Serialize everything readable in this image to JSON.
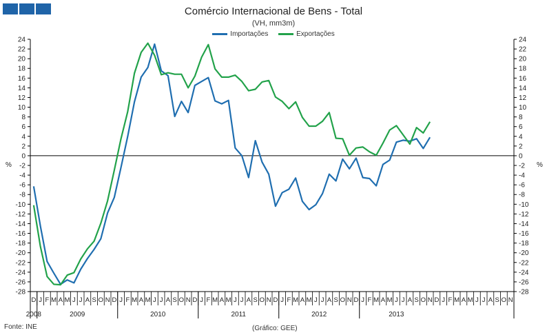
{
  "header": {
    "title": "Comércio Internacional de Bens - Total",
    "subtitle": "(VH, mm3m)"
  },
  "footer": {
    "source": "Fonte: INE",
    "credit": "(Gráfico: GEE)"
  },
  "chart_data": {
    "type": "line",
    "title": "Comércio Internacional de Bens - Total",
    "subtitle": "(VH, mm3m)",
    "ylabel_left": "%",
    "ylabel_right": "%",
    "ylim": [
      -28,
      24
    ],
    "yticks": [
      24,
      22,
      20,
      18,
      16,
      14,
      12,
      10,
      8,
      6,
      4,
      2,
      0,
      -2,
      -4,
      -6,
      -8,
      -10,
      -12,
      -14,
      -16,
      -18,
      -20,
      -22,
      -24,
      -26,
      -28
    ],
    "legend_position": "top-center",
    "grid": false,
    "x_month_labels": [
      "D",
      "J",
      "F",
      "M",
      "A",
      "M",
      "J",
      "J",
      "A",
      "S",
      "O",
      "N",
      "D",
      "J",
      "F",
      "M",
      "A",
      "M",
      "J",
      "J",
      "A",
      "S",
      "O",
      "N",
      "D",
      "J",
      "F",
      "M",
      "A",
      "M",
      "J",
      "J",
      "A",
      "S",
      "O",
      "N",
      "D",
      "J",
      "F",
      "M",
      "A",
      "M",
      "J",
      "J",
      "A",
      "S",
      "O",
      "N",
      "D",
      "J",
      "F",
      "M",
      "A",
      "M",
      "J",
      "J",
      "A",
      "S",
      "O",
      "N",
      "D",
      "J",
      "F",
      "M",
      "A",
      "M",
      "J",
      "J",
      "A",
      "S",
      "O",
      "N"
    ],
    "x_year_labels": [
      {
        "label": "2008",
        "start": 0,
        "end": 0
      },
      {
        "label": "2009",
        "start": 1,
        "end": 12
      },
      {
        "label": "2010",
        "start": 13,
        "end": 24
      },
      {
        "label": "2011",
        "start": 25,
        "end": 36
      },
      {
        "label": "2012",
        "start": 37,
        "end": 48
      },
      {
        "label": "2013",
        "start": 49,
        "end": 59
      }
    ],
    "series": [
      {
        "name": "Importações",
        "color": "#1f6eb0",
        "values": [
          -6.3,
          -14.5,
          -21.8,
          -24.2,
          -26.5,
          -25.6,
          -26.2,
          -23.4,
          -21.2,
          -19.3,
          -17.1,
          -11.8,
          -8.6,
          -2.4,
          4.0,
          11.1,
          16.2,
          18.2,
          23.0,
          17.5,
          16.5,
          8.1,
          11.2,
          8.9,
          14.5,
          15.3,
          16.1,
          11.3,
          10.7,
          11.4,
          1.6,
          0.0,
          -4.5,
          3.1,
          -1.3,
          -3.8,
          -10.4,
          -7.6,
          -6.9,
          -4.6,
          -9.4,
          -11.1,
          -10.1,
          -7.8,
          -3.8,
          -5.2,
          -0.7,
          -2.7,
          -0.5,
          -4.5,
          -4.7,
          -6.2,
          -1.8,
          -0.9,
          2.8,
          3.2,
          3.0,
          3.5,
          1.5,
          3.8
        ]
      },
      {
        "name": "Exportações",
        "color": "#22a24a",
        "values": [
          -10.2,
          -18.7,
          -24.9,
          -26.5,
          -26.6,
          -24.6,
          -24.1,
          -21.3,
          -19.2,
          -17.6,
          -13.9,
          -9.3,
          -3.0,
          3.5,
          9.1,
          17.0,
          21.3,
          23.2,
          20.7,
          16.7,
          17.1,
          16.8,
          16.8,
          14.0,
          16.4,
          20.3,
          22.9,
          17.9,
          16.2,
          16.2,
          16.6,
          15.3,
          13.4,
          13.7,
          15.2,
          15.5,
          12.1,
          11.2,
          9.7,
          11.1,
          7.9,
          6.1,
          6.1,
          7.1,
          8.9,
          3.6,
          3.5,
          0.1,
          1.6,
          1.8,
          0.8,
          0.1,
          2.6,
          5.3,
          6.2,
          4.3,
          2.4,
          5.8,
          4.7,
          7.0
        ]
      }
    ]
  }
}
